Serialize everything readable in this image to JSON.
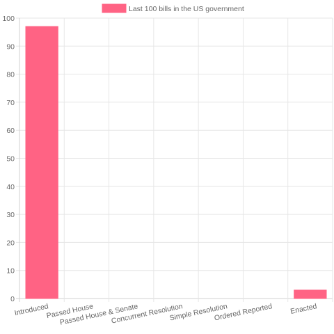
{
  "chart_data": {
    "type": "bar",
    "categories": [
      "Introduced",
      "Passed House",
      "Passed House & Senate",
      "Concurrent Resolution",
      "Simple Resolution",
      "Ordered Reported",
      "Enacted"
    ],
    "series": [
      {
        "name": "Last 100 bills in the US government",
        "values": [
          97,
          0,
          0,
          0,
          0,
          0,
          3
        ]
      }
    ],
    "ylim": [
      0,
      100
    ],
    "yticks": [
      0,
      10,
      20,
      30,
      40,
      50,
      60,
      70,
      80,
      90,
      100
    ],
    "grid": true,
    "legend_position": "top",
    "colors": {
      "bar_fill": "#ff6384",
      "bar_border": "#ff6384"
    }
  }
}
